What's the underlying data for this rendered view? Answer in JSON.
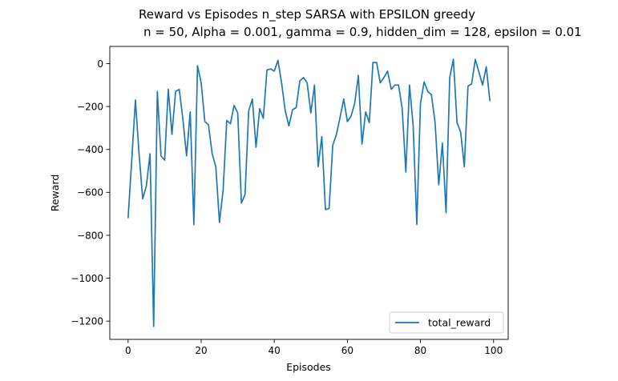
{
  "chart_data": {
    "type": "line",
    "title": "Reward vs Episodes n_step SARSA with EPSILON greedy",
    "subtitle": " n = 50, Alpha = 0.001, gamma = 0.9, hidden_dim = 128, epsilon = 0.01",
    "xlabel": "Episodes",
    "ylabel": "Reward",
    "xlim": [
      -5,
      104
    ],
    "ylim": [
      -1285,
      80
    ],
    "xticks": [
      0,
      20,
      40,
      60,
      80,
      100
    ],
    "yticks": [
      0,
      -200,
      -400,
      -600,
      -800,
      -1000,
      -1200
    ],
    "grid": false,
    "legend_position": "lower-right",
    "series": [
      {
        "name": "total_reward",
        "color": "#1f77b4",
        "x": [
          0,
          1,
          2,
          3,
          4,
          5,
          6,
          7,
          8,
          9,
          10,
          11,
          12,
          13,
          14,
          15,
          16,
          17,
          18,
          19,
          20,
          21,
          22,
          23,
          24,
          25,
          26,
          27,
          28,
          29,
          30,
          31,
          32,
          33,
          34,
          35,
          36,
          37,
          38,
          39,
          40,
          41,
          42,
          43,
          44,
          45,
          46,
          47,
          48,
          49,
          50,
          51,
          52,
          53,
          54,
          55,
          56,
          57,
          58,
          59,
          60,
          61,
          62,
          63,
          64,
          65,
          66,
          67,
          68,
          69,
          70,
          71,
          72,
          73,
          74,
          75,
          76,
          77,
          78,
          79,
          80,
          81,
          82,
          83,
          84,
          85,
          86,
          87,
          88,
          89,
          90,
          91,
          92,
          93,
          94,
          95,
          96,
          97,
          98,
          99
        ],
        "y": [
          -720,
          -450,
          -170,
          -420,
          -630,
          -570,
          -420,
          -1225,
          -130,
          -430,
          -450,
          -120,
          -330,
          -130,
          -120,
          -260,
          -430,
          -225,
          -750,
          -10,
          -90,
          -270,
          -285,
          -420,
          -480,
          -740,
          -590,
          -265,
          -280,
          -195,
          -230,
          -650,
          -610,
          -220,
          -165,
          -390,
          -210,
          -255,
          -30,
          -25,
          -35,
          15,
          -90,
          -220,
          -290,
          -215,
          -205,
          -80,
          -65,
          -90,
          -230,
          -100,
          -480,
          -340,
          -680,
          -675,
          -380,
          -330,
          -250,
          -165,
          -270,
          -245,
          -185,
          -55,
          -375,
          -225,
          -275,
          5,
          5,
          -90,
          -65,
          -35,
          -120,
          -100,
          -100,
          -210,
          -505,
          -100,
          -290,
          -750,
          -185,
          -85,
          -130,
          -145,
          -275,
          -565,
          -370,
          -695,
          -65,
          20,
          -275,
          -320,
          -480,
          -105,
          -95,
          20,
          -40,
          -100,
          -15,
          -175
        ]
      }
    ]
  }
}
